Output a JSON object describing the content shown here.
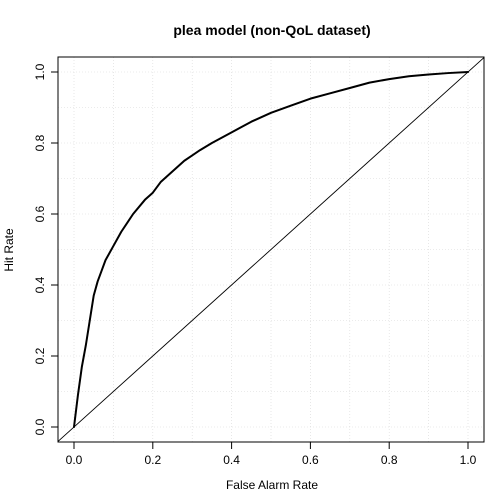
{
  "chart_data": {
    "type": "line",
    "title": "plea model (non-QoL dataset)",
    "xlabel": "False Alarm Rate",
    "ylabel": "Hit Rate",
    "xlim": [
      0,
      1
    ],
    "ylim": [
      0,
      1
    ],
    "xticks": [
      "0.0",
      "0.2",
      "0.4",
      "0.6",
      "0.8",
      "1.0"
    ],
    "yticks": [
      "0.0",
      "0.2",
      "0.4",
      "0.6",
      "0.8",
      "1.0"
    ],
    "grid": true,
    "series": [
      {
        "x": [
          0,
          0.01,
          0.02,
          0.03,
          0.04,
          0.05,
          0.06,
          0.07,
          0.08,
          0.1,
          0.12,
          0.15,
          0.18,
          0.2,
          0.22,
          0.25,
          0.28,
          0.3,
          0.32,
          0.35,
          0.4,
          0.45,
          0.5,
          0.55,
          0.6,
          0.65,
          0.7,
          0.75,
          0.8,
          0.85,
          0.9,
          0.95,
          1.0
        ],
        "y": [
          0,
          0.09,
          0.17,
          0.23,
          0.3,
          0.37,
          0.41,
          0.44,
          0.47,
          0.51,
          0.55,
          0.6,
          0.64,
          0.66,
          0.69,
          0.72,
          0.75,
          0.765,
          0.78,
          0.8,
          0.83,
          0.86,
          0.885,
          0.905,
          0.925,
          0.94,
          0.955,
          0.97,
          0.98,
          0.988,
          0.993,
          0.997,
          1.0
        ],
        "color": "#000000"
      }
    ],
    "reference_line": {
      "x": [
        0,
        1
      ],
      "y": [
        0,
        1
      ],
      "color": "#000000"
    }
  }
}
